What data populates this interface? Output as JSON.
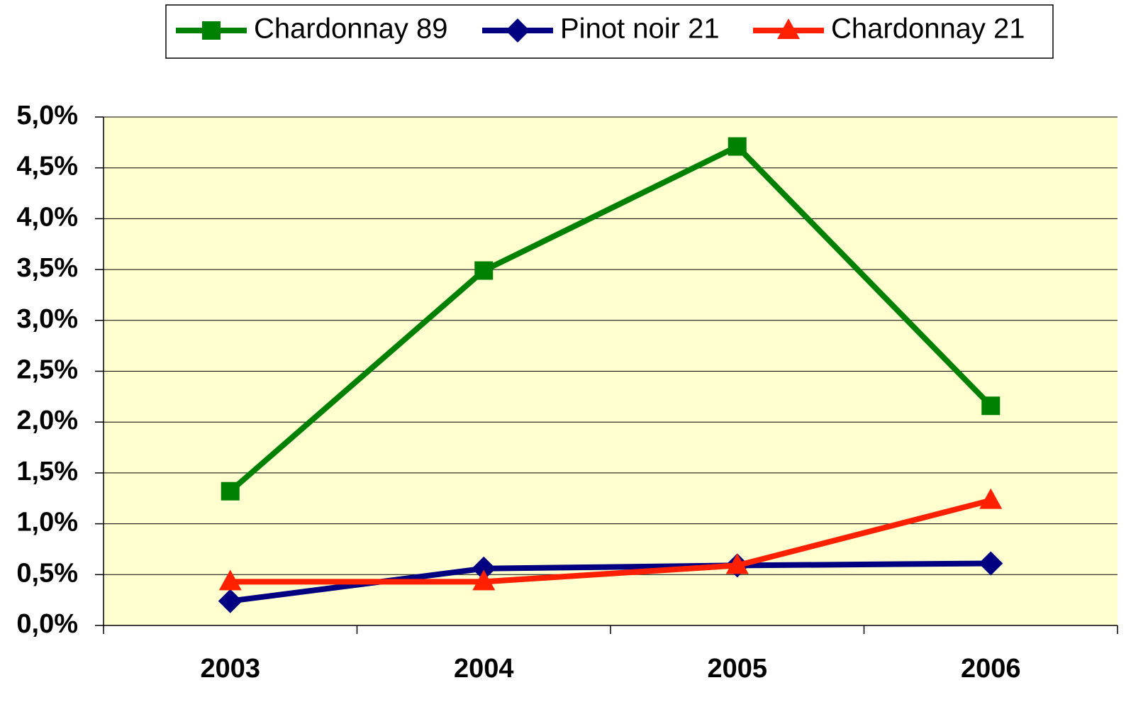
{
  "chart_data": {
    "type": "line",
    "categories": [
      "2003",
      "2004",
      "2005",
      "2006"
    ],
    "series": [
      {
        "name": "Chardonnay 89",
        "color": "#008000",
        "marker": "square",
        "values": [
          1.32,
          3.49,
          4.71,
          2.16
        ]
      },
      {
        "name": "Pinot noir 21",
        "color": "#000080",
        "marker": "diamond",
        "values": [
          0.24,
          0.56,
          0.59,
          0.61
        ]
      },
      {
        "name": "Chardonnay 21",
        "color": "#ff2000",
        "marker": "triangle",
        "values": [
          0.43,
          0.43,
          0.59,
          1.23
        ]
      }
    ],
    "ylim": [
      0,
      5
    ],
    "yticks": [
      {
        "value": 0,
        "label": "0,0%"
      },
      {
        "value": 0.5,
        "label": "0,5%"
      },
      {
        "value": 1,
        "label": "1,0%"
      },
      {
        "value": 1.5,
        "label": "1,5%"
      },
      {
        "value": 2,
        "label": "2,0%"
      },
      {
        "value": 2.5,
        "label": "2,5%"
      },
      {
        "value": 3,
        "label": "3,0%"
      },
      {
        "value": 3.5,
        "label": "3,5%"
      },
      {
        "value": 4,
        "label": "4,0%"
      },
      {
        "value": 4.5,
        "label": "4,5%"
      },
      {
        "value": 5,
        "label": "5,0%"
      }
    ],
    "grid": true,
    "legend": "top",
    "plot_background": "#ffffd0"
  }
}
